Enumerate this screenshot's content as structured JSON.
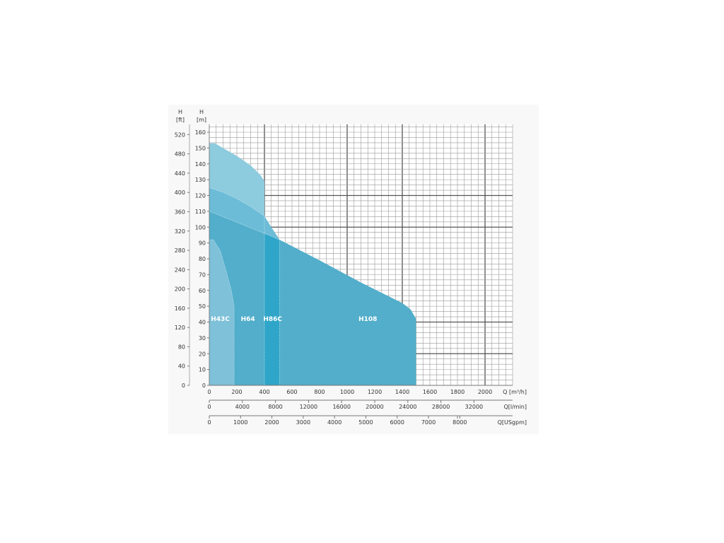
{
  "chart_data": {
    "type": "area",
    "y_axis_m": {
      "label": "H",
      "unit": "[m]",
      "range": [
        0,
        165
      ],
      "ticks": [
        0,
        10,
        20,
        30,
        40,
        50,
        60,
        70,
        80,
        90,
        100,
        110,
        120,
        130,
        140,
        150,
        160
      ]
    },
    "y_axis_ft": {
      "label": "H",
      "unit": "[ft]",
      "ticks": [
        0,
        40,
        80,
        120,
        160,
        200,
        240,
        280,
        320,
        360,
        400,
        440,
        480,
        520
      ]
    },
    "x_axis_m3h": {
      "label": "Q [m³/h]",
      "range": [
        0,
        2200
      ],
      "ticks": [
        0,
        200,
        400,
        600,
        800,
        1000,
        1200,
        1400,
        1600,
        1800,
        2000
      ]
    },
    "x_axis_lmin": {
      "label": "Q[l/min]",
      "ticks": [
        0,
        4000,
        8000,
        12000,
        16000,
        20000,
        24000,
        28000,
        32000
      ]
    },
    "x_axis_usgpm": {
      "label": "Q[USgpm]",
      "ticks": [
        0,
        1000,
        2000,
        3000,
        4000,
        5000,
        6000,
        7000,
        8000
      ]
    },
    "grid": true,
    "series": [
      {
        "name": "H64",
        "color": "#8dcbde",
        "points": [
          [
            0,
            153
          ],
          [
            40,
            153
          ],
          [
            100,
            150
          ],
          [
            200,
            145
          ],
          [
            300,
            139
          ],
          [
            370,
            133
          ],
          [
            400,
            129
          ],
          [
            400,
            0
          ],
          [
            0,
            0
          ]
        ]
      },
      {
        "name": "H86C",
        "color": "#6cbcd7",
        "points": [
          [
            0,
            125
          ],
          [
            100,
            122
          ],
          [
            200,
            118
          ],
          [
            300,
            113
          ],
          [
            400,
            107
          ],
          [
            450,
            100
          ],
          [
            510,
            92
          ],
          [
            510,
            0
          ],
          [
            0,
            0
          ]
        ]
      },
      {
        "name": "H108",
        "color": "#52aeca",
        "points": [
          [
            0,
            110
          ],
          [
            200,
            103
          ],
          [
            400,
            96
          ],
          [
            510,
            92
          ],
          [
            800,
            79
          ],
          [
            1100,
            65
          ],
          [
            1400,
            52
          ],
          [
            1460,
            48
          ],
          [
            1500,
            42
          ],
          [
            1500,
            0
          ],
          [
            0,
            0
          ]
        ]
      },
      {
        "name": "H86C-band",
        "color": "#2fa6c9",
        "points": [
          [
            400,
            96
          ],
          [
            510,
            92
          ],
          [
            510,
            0
          ],
          [
            400,
            0
          ]
        ]
      },
      {
        "name": "H43C",
        "color": "#7ec1d9",
        "points": [
          [
            0,
            92
          ],
          [
            30,
            92
          ],
          [
            80,
            85
          ],
          [
            120,
            73
          ],
          [
            160,
            60
          ],
          [
            180,
            50
          ],
          [
            180,
            0
          ],
          [
            0,
            0
          ]
        ]
      }
    ],
    "labels": [
      {
        "text": "H43C",
        "q": 80,
        "h": 42
      },
      {
        "text": "H64",
        "q": 280,
        "h": 42
      },
      {
        "text": "H86C",
        "q": 460,
        "h": 42
      },
      {
        "text": "H108",
        "q": 1150,
        "h": 42
      }
    ]
  }
}
